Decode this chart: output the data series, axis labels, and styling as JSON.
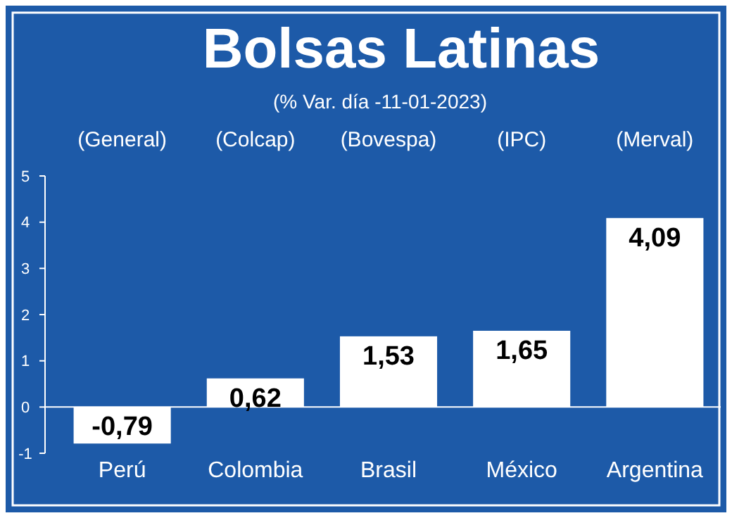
{
  "chart_data": {
    "type": "bar",
    "title": "Bolsas Latinas",
    "subtitle": "(% Var. día -11-01-2023)",
    "categories": [
      "Perú",
      "Colombia",
      "Brasil",
      "México",
      "Argentina"
    ],
    "values": [
      -0.79,
      0.62,
      1.53,
      1.65,
      4.09
    ],
    "value_labels": [
      "-0,79",
      "0,62",
      "1,53",
      "1,65",
      "4,09"
    ],
    "color": "#ffffff",
    "ylim": [
      -1,
      5
    ],
    "yticks": [
      -1,
      0,
      1,
      2,
      3,
      4,
      5
    ],
    "annotations": [
      "(General)",
      "(Colcap)",
      "(Bovespa)",
      "(IPC)",
      "(Merval)"
    ],
    "grid": false
  }
}
